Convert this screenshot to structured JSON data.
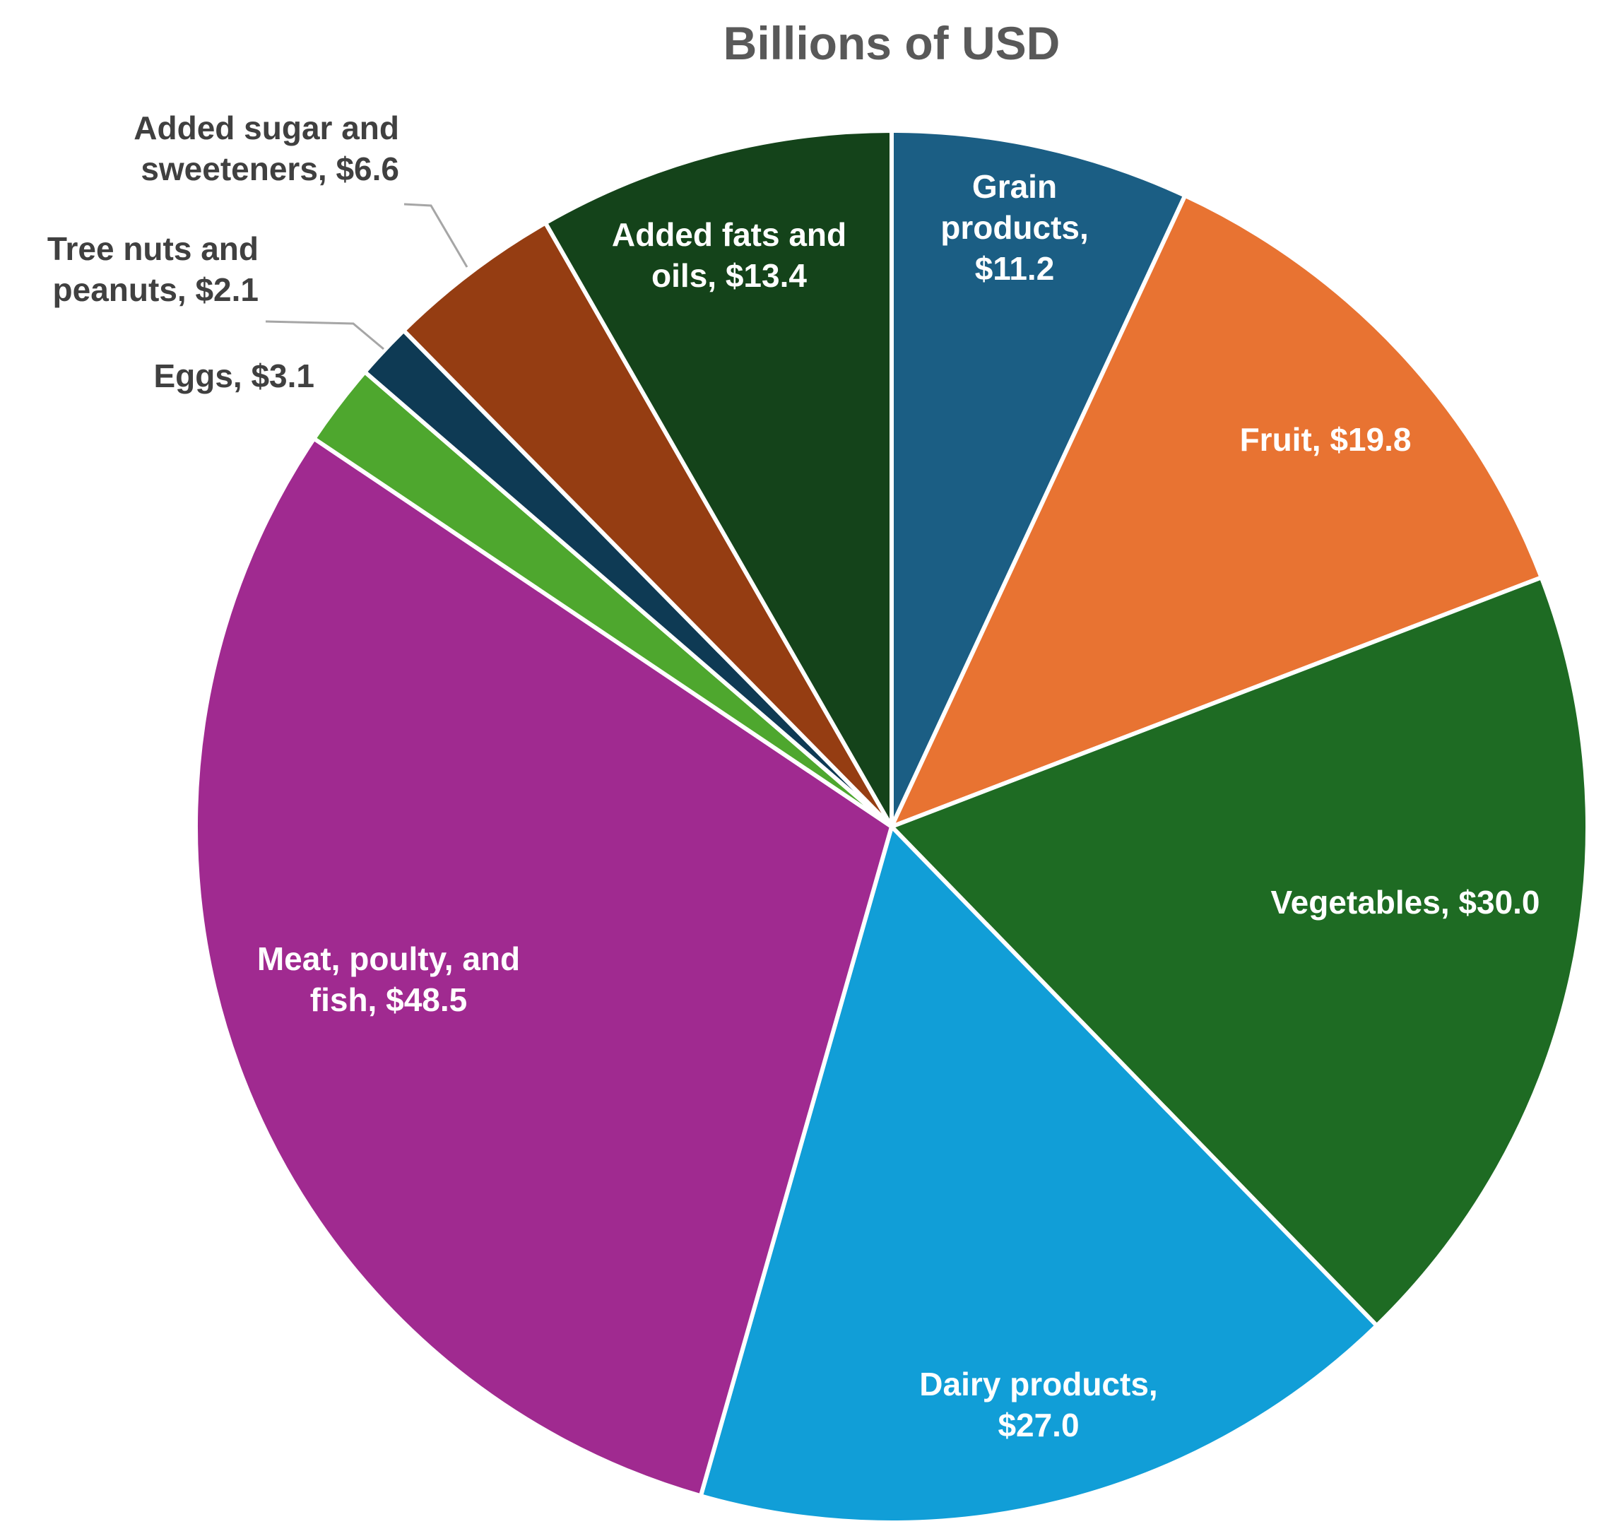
{
  "chart_data": {
    "type": "pie",
    "title": "Billions of USD",
    "start_angle_deg": 0,
    "direction": "clockwise",
    "slices": [
      {
        "label": "Grain products, $11.2",
        "label_lines": [
          "Grain",
          "products,",
          "$11.2"
        ],
        "category": "Grain products",
        "value": 11.2,
        "color": "#1b5e84",
        "text_color": "#ffffff"
      },
      {
        "label": "Fruit, $19.8",
        "label_lines": [
          "Fruit, $19.8"
        ],
        "category": "Fruit",
        "value": 19.8,
        "color": "#e87332",
        "text_color": "#ffffff"
      },
      {
        "label": "Vegetables, $30.0",
        "label_lines": [
          "Vegetables, $30.0"
        ],
        "category": "Vegetables",
        "value": 30.0,
        "color": "#1e6b23",
        "text_color": "#ffffff"
      },
      {
        "label": "Dairy products, $27.0",
        "label_lines": [
          "Dairy products,",
          "$27.0"
        ],
        "category": "Dairy products",
        "value": 27.0,
        "color": "#119ed7",
        "text_color": "#ffffff"
      },
      {
        "label": "Meat, poulty, and fish, $48.5",
        "label_lines": [
          "Meat, poulty, and",
          "fish, $48.5"
        ],
        "category": "Meat, poulty, and fish",
        "value": 48.5,
        "color": "#a02a90",
        "text_color": "#ffffff"
      },
      {
        "label": "Eggs, $3.1",
        "label_lines": [
          "Eggs, $3.1"
        ],
        "category": "Eggs",
        "value": 3.1,
        "color": "#4ea72e",
        "text_color": "#404040"
      },
      {
        "label": "Tree nuts and peanuts, $2.1",
        "label_lines": [
          "Tree nuts and",
          "peanuts, $2.1"
        ],
        "category": "Tree nuts and peanuts",
        "value": 2.1,
        "color": "#0e3a54",
        "text_color": "#404040"
      },
      {
        "label": "Added sugar and sweeteners, $6.6",
        "label_lines": [
          "Added sugar and",
          "sweeteners, $6.6"
        ],
        "category": "Added sugar and sweeteners",
        "value": 6.6,
        "color": "#953d12",
        "text_color": "#404040"
      },
      {
        "label": "Added fats and oils, $13.4",
        "label_lines": [
          "Added fats and",
          "oils, $13.4"
        ],
        "category": "Added fats and oils",
        "value": 13.4,
        "color": "#14431a",
        "text_color": "#ffffff"
      }
    ]
  }
}
